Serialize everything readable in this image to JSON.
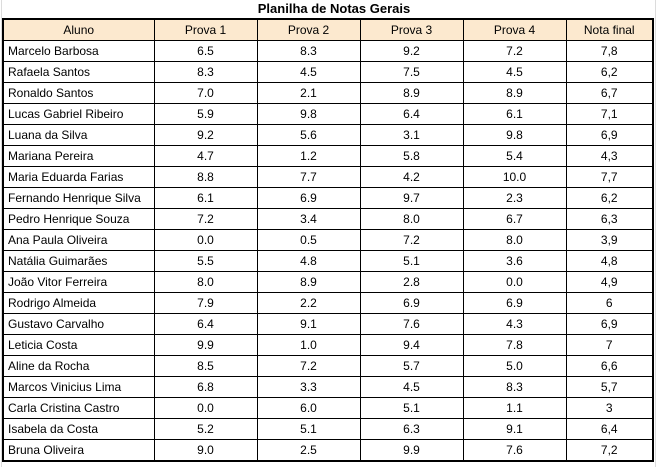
{
  "sheet": {
    "title": "Planilha de Notas Gerais"
  },
  "table": {
    "columns": [
      "Aluno",
      "Prova 1",
      "Prova 2",
      "Prova 3",
      "Prova 4",
      "Nota final"
    ],
    "rows": [
      [
        "Marcelo Barbosa",
        "6.5",
        "8.3",
        "9.2",
        "7.2",
        "7,8"
      ],
      [
        "Rafaela Santos",
        "8.3",
        "4.5",
        "7.5",
        "4.5",
        "6,2"
      ],
      [
        "Ronaldo Santos",
        "7.0",
        "2.1",
        "8.9",
        "8.9",
        "6,7"
      ],
      [
        "Lucas Gabriel Ribeiro",
        "5.9",
        "9.8",
        "6.4",
        "6.1",
        "7,1"
      ],
      [
        "Luana da Silva",
        "9.2",
        "5.6",
        "3.1",
        "9.8",
        "6,9"
      ],
      [
        "Mariana Pereira",
        "4.7",
        "1.2",
        "5.8",
        "5.4",
        "4,3"
      ],
      [
        "Maria Eduarda Farias",
        "8.8",
        "7.7",
        "4.2",
        "10.0",
        "7,7"
      ],
      [
        "Fernando Henrique Silva",
        "6.1",
        "6.9",
        "9.7",
        "2.3",
        "6,2"
      ],
      [
        "Pedro Henrique Souza",
        "7.2",
        "3.4",
        "8.0",
        "6.7",
        "6,3"
      ],
      [
        "Ana Paula Oliveira",
        "0.0",
        "0.5",
        "7.2",
        "8.0",
        "3,9"
      ],
      [
        "Natália Guimarães",
        "5.5",
        "4.8",
        "5.1",
        "3.6",
        "4,8"
      ],
      [
        "João Vitor Ferreira",
        "8.0",
        "8.9",
        "2.8",
        "0.0",
        "4,9"
      ],
      [
        "Rodrigo Almeida",
        "7.9",
        "2.2",
        "6.9",
        "6.9",
        "6"
      ],
      [
        "Gustavo Carvalho",
        "6.4",
        "9.1",
        "7.6",
        "4.3",
        "6,9"
      ],
      [
        "Leticia Costa",
        "9.9",
        "1.0",
        "9.4",
        "7.8",
        "7"
      ],
      [
        "Aline da Rocha",
        "8.5",
        "7.2",
        "5.7",
        "5.0",
        "6,6"
      ],
      [
        "Marcos Vinicius Lima",
        "6.8",
        "3.3",
        "4.5",
        "8.3",
        "5,7"
      ],
      [
        "Carla Cristina Castro",
        "0.0",
        "6.0",
        "5.1",
        "1.1",
        "3"
      ],
      [
        "Isabela da Costa",
        "5.2",
        "5.1",
        "6.3",
        "9.1",
        "6,4"
      ],
      [
        "Bruna Oliveira",
        "9.0",
        "2.5",
        "9.9",
        "7.6",
        "7,2"
      ]
    ]
  },
  "colors": {
    "header_bg": "#FCE9CF",
    "border": "#000000",
    "gridline": "#DCDCDC",
    "text": "#000000",
    "background": "#FFFFFF"
  }
}
